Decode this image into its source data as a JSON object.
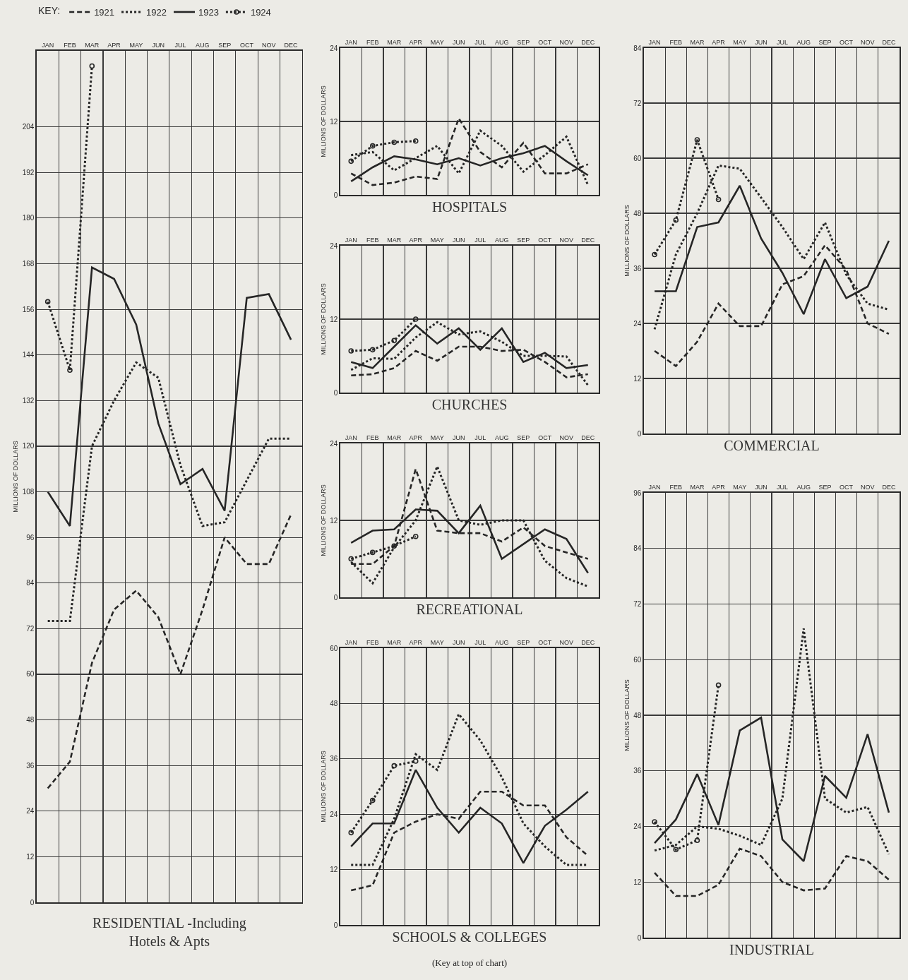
{
  "chart_data": [
    {
      "type": "line",
      "title": "RESIDENTIAL -Including Hotels & Apts",
      "ylabel": "MILLIONS OF DOLLARS",
      "legend_title": "KEY:",
      "legend": "top",
      "grid": true,
      "categories": [
        "JAN",
        "FEB",
        "MAR",
        "APR",
        "MAY",
        "JUN",
        "JUL",
        "AUG",
        "SEP",
        "OCT",
        "NOV",
        "DEC"
      ],
      "ylim": [
        0,
        224
      ],
      "yticks": [
        0,
        12,
        24,
        36,
        48,
        60,
        72,
        84,
        96,
        108,
        120,
        132,
        144,
        156,
        168,
        180,
        192,
        204
      ],
      "series": [
        {
          "name": "1921",
          "color": "#262626",
          "line_style": "dashed",
          "values": [
            30,
            37,
            63,
            77,
            82,
            75,
            60,
            77,
            96,
            89,
            89,
            102
          ]
        },
        {
          "name": "1922",
          "color": "#262626",
          "line_style": "dotted",
          "values": [
            74,
            74,
            120,
            132,
            142,
            138,
            115,
            99,
            100,
            111,
            122,
            122
          ]
        },
        {
          "name": "1923",
          "color": "#262626",
          "line_style": "solid",
          "values": [
            108,
            99,
            167,
            164,
            152,
            126,
            110,
            114,
            103,
            159,
            160,
            148
          ]
        },
        {
          "name": "1924",
          "color": "#262626",
          "line_style": "dotted",
          "marker": "circle",
          "values": [
            158,
            140,
            220,
            null,
            null,
            null,
            null,
            null,
            null,
            null,
            null,
            null
          ]
        }
      ]
    },
    {
      "type": "line",
      "title": "HOSPITALS",
      "ylabel": "MILLIONS OF DOLLARS",
      "grid": true,
      "categories": [
        "JAN",
        "FEB",
        "MAR",
        "APR",
        "MAY",
        "JUN",
        "JUL",
        "AUG",
        "SEP",
        "OCT",
        "NOV",
        "DEC"
      ],
      "ylim": [
        0,
        24
      ],
      "yticks": [
        0,
        12,
        24
      ],
      "series": [
        {
          "color": "#262626",
          "line_style": "dashed",
          "values": [
            3.5,
            1.6,
            2,
            3,
            2.6,
            12.5,
            7,
            4.5,
            8.5,
            3.5,
            3.5,
            5
          ]
        },
        {
          "color": "#262626",
          "line_style": "dotted",
          "values": [
            6.5,
            7,
            4,
            6,
            8,
            3.5,
            10.5,
            8,
            3.8,
            6.5,
            9.5,
            1.6
          ]
        },
        {
          "color": "#262626",
          "line_style": "solid",
          "values": [
            2.2,
            4.5,
            6.3,
            5.8,
            5,
            6,
            4.8,
            6,
            6.8,
            8,
            5.5,
            3.2
          ]
        },
        {
          "color": "#262626",
          "line_style": "dotted",
          "marker": "circle",
          "values": [
            5.5,
            8,
            8.6,
            8.8,
            null,
            null,
            null,
            null,
            null,
            null,
            null,
            null
          ]
        }
      ]
    },
    {
      "type": "line",
      "title": "CHURCHES",
      "ylabel": "MILLIONS OF DOLLARS",
      "grid": true,
      "categories": [
        "JAN",
        "FEB",
        "MAR",
        "APR",
        "MAY",
        "JUN",
        "JUL",
        "AUG",
        "SEP",
        "OCT",
        "NOV",
        "DEC"
      ],
      "ylim": [
        0,
        24
      ],
      "yticks": [
        0,
        12,
        24
      ],
      "series": [
        {
          "color": "#262626",
          "line_style": "dashed",
          "values": [
            2.8,
            3,
            4,
            6.8,
            5.2,
            7.5,
            7.5,
            6.8,
            7,
            5,
            2.5,
            3
          ]
        },
        {
          "color": "#262626",
          "line_style": "dotted",
          "values": [
            3.7,
            5.6,
            5.5,
            9,
            11.5,
            9.5,
            10,
            8.3,
            6,
            6,
            5.9,
            1.2
          ]
        },
        {
          "color": "#262626",
          "line_style": "solid",
          "values": [
            5,
            4,
            7.5,
            11,
            8,
            10.5,
            7,
            10.5,
            5,
            6.5,
            4,
            4.5
          ]
        },
        {
          "color": "#262626",
          "line_style": "dotted",
          "marker": "circle",
          "values": [
            6.8,
            7,
            8.5,
            12,
            null,
            null,
            null,
            null,
            null,
            null,
            null,
            null
          ]
        }
      ]
    },
    {
      "type": "line",
      "title": "RECREATIONAL",
      "ylabel": "MILLIONS OF DOLLARS",
      "grid": true,
      "categories": [
        "JAN",
        "FEB",
        "MAR",
        "APR",
        "MAY",
        "JUN",
        "JUL",
        "AUG",
        "SEP",
        "OCT",
        "NOV",
        "DEC"
      ],
      "ylim": [
        0,
        24
      ],
      "yticks": [
        0,
        12,
        24
      ],
      "series": [
        {
          "color": "#262626",
          "line_style": "dashed",
          "values": [
            5.2,
            5.2,
            8,
            20,
            10.4,
            10,
            10,
            8.7,
            10.9,
            8,
            7,
            6
          ]
        },
        {
          "color": "#262626",
          "line_style": "dotted",
          "values": [
            5.5,
            2.2,
            7.8,
            12,
            20.4,
            12,
            11.3,
            12,
            12,
            5.7,
            3,
            1.7
          ]
        },
        {
          "color": "#262626",
          "line_style": "solid",
          "values": [
            8.5,
            10.4,
            10.6,
            13.7,
            13.5,
            10,
            14.3,
            6,
            8.3,
            10.6,
            9.1,
            3.8
          ]
        },
        {
          "color": "#262626",
          "line_style": "dotted",
          "marker": "circle",
          "values": [
            6,
            7,
            8,
            9.5,
            null,
            null,
            null,
            null,
            null,
            null,
            null,
            null
          ]
        }
      ]
    },
    {
      "type": "line",
      "title": "SCHOOLS & COLLEGES",
      "subtitle": "(Key at top of chart)",
      "ylabel": "MILLIONS OF DOLLARS",
      "grid": true,
      "categories": [
        "JAN",
        "FEB",
        "MAR",
        "APR",
        "MAY",
        "JUN",
        "JUL",
        "AUG",
        "SEP",
        "OCT",
        "NOV",
        "DEC"
      ],
      "ylim": [
        0,
        60
      ],
      "yticks": [
        0,
        12,
        24,
        36,
        48,
        60
      ],
      "series": [
        {
          "color": "#262626",
          "line_style": "dashed",
          "values": [
            7.5,
            8.6,
            20,
            22.4,
            24,
            23,
            28.9,
            28.9,
            25.9,
            25.9,
            19,
            15
          ]
        },
        {
          "color": "#262626",
          "line_style": "dotted",
          "values": [
            13,
            13,
            23,
            37,
            33.6,
            45.7,
            40,
            32,
            22,
            17,
            13,
            13
          ]
        },
        {
          "color": "#262626",
          "line_style": "solid",
          "values": [
            17,
            22,
            22,
            33.6,
            25.4,
            20,
            25.4,
            22,
            13.4,
            21.5,
            25,
            28.9
          ]
        },
        {
          "color": "#262626",
          "line_style": "dotted",
          "marker": "circle",
          "values": [
            20,
            27,
            34.5,
            35.5,
            null,
            null,
            null,
            null,
            null,
            null,
            null,
            null
          ]
        }
      ]
    },
    {
      "type": "line",
      "title": "COMMERCIAL",
      "ylabel": "MILLIONS OF DOLLARS",
      "grid": true,
      "categories": [
        "JAN",
        "FEB",
        "MAR",
        "APR",
        "MAY",
        "JUN",
        "JUL",
        "AUG",
        "SEP",
        "OCT",
        "NOV",
        "DEC"
      ],
      "ylim": [
        0,
        84
      ],
      "yticks": [
        0,
        12,
        24,
        36,
        48,
        60,
        72,
        84
      ],
      "series": [
        {
          "color": "#262626",
          "line_style": "dashed",
          "values": [
            18,
            14.7,
            20,
            28.3,
            23.4,
            23.4,
            32.5,
            34.3,
            41,
            35.7,
            24,
            21.7
          ]
        },
        {
          "color": "#262626",
          "line_style": "dotted",
          "values": [
            22.7,
            39,
            48,
            58.4,
            57.7,
            51.4,
            45,
            38,
            46,
            34.6,
            28.3,
            27
          ]
        },
        {
          "color": "#262626",
          "line_style": "solid",
          "values": [
            31,
            31,
            45,
            46,
            54,
            42.5,
            35,
            26,
            38,
            29.5,
            32,
            42
          ]
        },
        {
          "color": "#262626",
          "line_style": "dotted",
          "marker": "circle",
          "values": [
            39,
            46.5,
            64,
            51,
            null,
            null,
            null,
            null,
            null,
            null,
            null,
            null
          ]
        }
      ]
    },
    {
      "type": "line",
      "title": "INDUSTRIAL",
      "ylabel": "MILLIONS OF DOLLARS",
      "grid": true,
      "categories": [
        "JAN",
        "FEB",
        "MAR",
        "APR",
        "MAY",
        "JUN",
        "JUL",
        "AUG",
        "SEP",
        "OCT",
        "NOV",
        "DEC"
      ],
      "ylim": [
        0,
        96
      ],
      "yticks": [
        0,
        12,
        24,
        36,
        48,
        60,
        72,
        84,
        96
      ],
      "series": [
        {
          "color": "#262626",
          "line_style": "dashed",
          "values": [
            14,
            9,
            9,
            11.4,
            19.2,
            17.6,
            12,
            10.2,
            10.6,
            17.6,
            16.5,
            12.5
          ]
        },
        {
          "color": "#262626",
          "line_style": "dotted",
          "values": [
            18.8,
            20,
            24,
            23.5,
            22,
            20,
            30,
            66.7,
            30,
            27,
            28.2,
            18
          ]
        },
        {
          "color": "#262626",
          "line_style": "solid",
          "values": [
            20.4,
            25.5,
            35.3,
            24.3,
            44.7,
            47.5,
            21.2,
            16.5,
            34.9,
            30.2,
            43.9,
            27
          ]
        },
        {
          "color": "#262626",
          "line_style": "dotted",
          "marker": "circle",
          "values": [
            25,
            19,
            21,
            54.5,
            null,
            null,
            null,
            null,
            null,
            null,
            null,
            null
          ]
        }
      ]
    }
  ]
}
